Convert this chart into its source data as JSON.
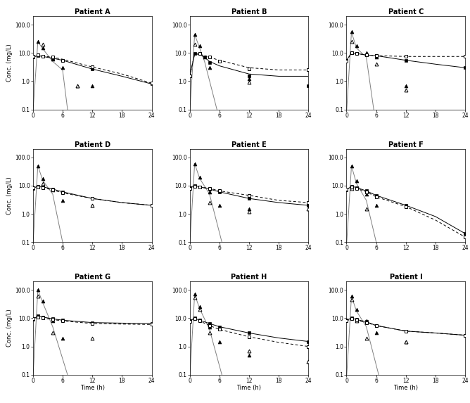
{
  "patients": [
    "Patient A",
    "Patient B",
    "Patient C",
    "Patient D",
    "Patient E",
    "Patient F",
    "Patient G",
    "Patient H",
    "Patient I"
  ],
  "xlim": [
    0,
    24
  ],
  "ylim": [
    0.1,
    200
  ],
  "yticks": [
    0.1,
    1.0,
    10.0,
    100.0
  ],
  "ytick_labels": [
    "0.1",
    "1.0",
    "10.0",
    "100.0"
  ],
  "xticks": [
    0,
    6,
    12,
    18,
    24
  ],
  "xlabel": "Time (h)",
  "ylabel": "Conc. (mg/L)",
  "A": {
    "cms_dose1_t": [
      1,
      2,
      4,
      6,
      9,
      12
    ],
    "cms_dose1_c": [
      25,
      15,
      6,
      3,
      0.7,
      0.7
    ],
    "cms_dose3_t": [
      2,
      9
    ],
    "cms_dose3_c": [
      20,
      0.7
    ],
    "col_dose1_t": [
      0,
      1,
      2,
      4,
      6,
      12,
      24
    ],
    "col_dose1_c": [
      7.0,
      8.0,
      7.5,
      6.5,
      5.5,
      2.7,
      0.8
    ],
    "col_dose3_t": [
      0,
      1,
      2,
      4,
      6,
      12,
      24
    ],
    "col_dose3_c": [
      7.5,
      8.5,
      7.5,
      7.0,
      5.5,
      3.2,
      0.85
    ],
    "line_cms1_t": [
      0.05,
      1,
      2,
      4,
      6,
      7.0
    ],
    "line_cms1_c": [
      0.1,
      25,
      14,
      5,
      2.5,
      0.1
    ],
    "line_col1_t": [
      0,
      1,
      2,
      4,
      6,
      12,
      18,
      24
    ],
    "line_col1_c": [
      7.0,
      8.0,
      7.5,
      6.5,
      5.5,
      2.7,
      1.5,
      0.8
    ],
    "line_col3_t": [
      0,
      1,
      2,
      4,
      6,
      12,
      18,
      24
    ],
    "line_col3_c": [
      7.5,
      8.5,
      7.8,
      7.0,
      6.0,
      3.2,
      1.8,
      0.85
    ]
  },
  "B": {
    "cms_dose1_t": [
      1,
      2,
      3,
      4,
      12
    ],
    "cms_dose1_c": [
      45,
      18,
      7,
      3,
      1.2
    ],
    "cms_dose3_t": [
      1,
      12
    ],
    "cms_dose3_c": [
      20,
      0.9
    ],
    "col_dose1_t": [
      0,
      1,
      2,
      3,
      4,
      12,
      24
    ],
    "col_dose1_c": [
      1.5,
      9.5,
      9.5,
      7,
      4.5,
      1.5,
      0.7
    ],
    "col_dose3_t": [
      0,
      2,
      4,
      6,
      12,
      24
    ],
    "col_dose3_c": [
      1.5,
      9.5,
      7.0,
      5.0,
      2.8,
      2.5
    ],
    "line_cms1_t": [
      0.05,
      1,
      2,
      3,
      5.5
    ],
    "line_cms1_c": [
      0.1,
      45,
      15,
      5,
      0.1
    ],
    "line_col1_t": [
      0,
      1,
      2,
      3,
      4,
      6,
      12,
      18,
      24
    ],
    "line_col1_c": [
      1.5,
      9.0,
      9.0,
      7.0,
      5.0,
      3.5,
      1.8,
      1.5,
      1.5
    ],
    "line_col3_t": [
      0,
      1,
      2,
      4,
      6,
      12,
      18,
      24
    ],
    "line_col3_c": [
      1.5,
      9.5,
      9.0,
      7.0,
      5.5,
      3.0,
      2.5,
      2.5
    ]
  },
  "C": {
    "cms_dose1_t": [
      1,
      2,
      4,
      6,
      12
    ],
    "cms_dose1_c": [
      55,
      18,
      10,
      7,
      0.7
    ],
    "cms_dose3_t": [
      1,
      6,
      12
    ],
    "cms_dose3_c": [
      25,
      4,
      0.5
    ],
    "col_dose1_t": [
      0,
      1,
      2,
      4,
      6,
      12,
      24
    ],
    "col_dose1_c": [
      5.5,
      10,
      9.5,
      8.5,
      8.0,
      5.5,
      3.0
    ],
    "col_dose3_t": [
      0,
      1,
      2,
      4,
      6,
      12,
      24
    ],
    "col_dose3_c": [
      5.0,
      10,
      9.5,
      8.5,
      8.0,
      7.5,
      7.5
    ],
    "line_cms1_t": [
      0.05,
      1,
      2,
      4,
      5.5
    ],
    "line_cms1_c": [
      0.1,
      55,
      15,
      7,
      0.1
    ],
    "line_col1_t": [
      0,
      1,
      2,
      4,
      6,
      12,
      18,
      24
    ],
    "line_col1_c": [
      5.5,
      10,
      9.5,
      8.5,
      8.0,
      5.5,
      4.0,
      3.0
    ],
    "line_col3_t": [
      0,
      1,
      2,
      4,
      6,
      12,
      18,
      24
    ],
    "line_col3_c": [
      5.0,
      10,
      9.5,
      8.5,
      8.0,
      7.5,
      7.5,
      7.5
    ]
  },
  "D": {
    "cms_dose1_t": [
      1,
      2,
      4,
      6,
      12
    ],
    "cms_dose1_c": [
      50,
      18,
      7,
      3,
      2
    ],
    "cms_dose3_t": [
      2,
      12
    ],
    "cms_dose3_c": [
      12,
      2
    ],
    "col_dose1_t": [
      0,
      1,
      2,
      4,
      6,
      12,
      24
    ],
    "col_dose1_c": [
      8.0,
      9.5,
      9.0,
      7.5,
      6.0,
      3.5,
      2.0
    ],
    "col_dose3_t": [
      0,
      1,
      2,
      4,
      6,
      12,
      24
    ],
    "col_dose3_c": [
      8.5,
      9.0,
      8.5,
      7.0,
      5.5,
      3.5,
      2.0
    ],
    "line_cms1_t": [
      0.05,
      1,
      2,
      4,
      6.0
    ],
    "line_cms1_c": [
      0.1,
      50,
      15,
      5,
      0.1
    ],
    "line_col1_t": [
      0,
      1,
      2,
      4,
      6,
      12,
      18,
      24
    ],
    "line_col1_c": [
      8.0,
      9.5,
      9.0,
      7.5,
      6.0,
      3.5,
      2.5,
      2.0
    ],
    "line_col3_t": [
      0,
      1,
      2,
      4,
      6,
      12,
      18,
      24
    ],
    "line_col3_c": [
      8.5,
      9.0,
      8.5,
      7.0,
      5.5,
      3.5,
      2.5,
      2.0
    ]
  },
  "E": {
    "cms_dose1_t": [
      1,
      2,
      4,
      6,
      12
    ],
    "cms_dose1_c": [
      60,
      20,
      6,
      2,
      1.5
    ],
    "cms_dose3_t": [
      4,
      12,
      24
    ],
    "cms_dose3_c": [
      2.5,
      1.2,
      1.5
    ],
    "col_dose1_t": [
      0,
      1,
      2,
      4,
      6,
      12,
      24
    ],
    "col_dose1_c": [
      8.5,
      10,
      9.0,
      7.5,
      6.0,
      3.5,
      2.0
    ],
    "col_dose3_t": [
      0,
      1,
      2,
      4,
      6,
      12,
      24
    ],
    "col_dose3_c": [
      8.0,
      9.5,
      9.0,
      8.0,
      6.5,
      4.5,
      2.5
    ],
    "line_cms1_t": [
      0.05,
      1,
      2,
      4,
      6.5
    ],
    "line_cms1_c": [
      0.1,
      60,
      18,
      5,
      0.1
    ],
    "line_col1_t": [
      0,
      1,
      2,
      4,
      6,
      12,
      18,
      24
    ],
    "line_col1_c": [
      8.5,
      10,
      9.0,
      7.5,
      6.0,
      3.5,
      2.5,
      2.0
    ],
    "line_col3_t": [
      0,
      1,
      2,
      4,
      6,
      12,
      18,
      24
    ],
    "line_col3_c": [
      8.0,
      9.5,
      9.0,
      8.0,
      6.5,
      4.5,
      3.0,
      2.5
    ]
  },
  "F": {
    "cms_dose1_t": [
      1,
      2,
      4,
      6
    ],
    "cms_dose1_c": [
      50,
      15,
      5,
      2
    ],
    "cms_dose3_t": [
      1,
      4
    ],
    "cms_dose3_c": [
      8,
      1.5
    ],
    "col_dose1_t": [
      0,
      1,
      2,
      4,
      6,
      12,
      24
    ],
    "col_dose1_c": [
      7.0,
      9.5,
      8.5,
      6.5,
      4.5,
      2.0,
      0.2
    ],
    "col_dose3_t": [
      0,
      1,
      2,
      4,
      6,
      12,
      24
    ],
    "col_dose3_c": [
      7.5,
      9.0,
      8.0,
      6.0,
      4.0,
      1.8,
      0.15
    ],
    "line_cms1_t": [
      0.05,
      1,
      2,
      4,
      6.0
    ],
    "line_cms1_c": [
      0.1,
      50,
      12,
      3,
      0.1
    ],
    "line_col1_t": [
      0,
      1,
      2,
      4,
      6,
      12,
      18,
      24
    ],
    "line_col1_c": [
      7.0,
      9.5,
      8.5,
      6.5,
      4.5,
      2.0,
      0.8,
      0.2
    ],
    "line_col3_t": [
      0,
      1,
      2,
      4,
      6,
      12,
      18,
      24
    ],
    "line_col3_c": [
      7.5,
      9.0,
      8.0,
      6.0,
      4.0,
      1.8,
      0.6,
      0.15
    ]
  },
  "G": {
    "cms_dose1_t": [
      1,
      2,
      4,
      6
    ],
    "cms_dose1_c": [
      100,
      40,
      8,
      2
    ],
    "cms_dose3_t": [
      1,
      4,
      12
    ],
    "cms_dose3_c": [
      60,
      3,
      2
    ],
    "col_dose1_t": [
      0,
      1,
      2,
      4,
      6,
      12,
      24
    ],
    "col_dose1_c": [
      9.0,
      12,
      11,
      9.5,
      8.5,
      7.0,
      6.5
    ],
    "col_dose3_t": [
      0,
      1,
      2,
      4,
      6,
      12,
      24
    ],
    "col_dose3_c": [
      9.5,
      11,
      10,
      9.0,
      8.0,
      6.5,
      6.0
    ],
    "line_cms1_t": [
      0.05,
      1,
      2,
      4,
      7.0
    ],
    "line_cms1_c": [
      0.1,
      100,
      35,
      5,
      0.1
    ],
    "line_col1_t": [
      0,
      1,
      2,
      4,
      6,
      12,
      18,
      24
    ],
    "line_col1_c": [
      9.0,
      12,
      11,
      9.5,
      8.5,
      7.0,
      6.7,
      6.5
    ],
    "line_col3_t": [
      0,
      1,
      2,
      4,
      6,
      12,
      18,
      24
    ],
    "line_col3_c": [
      9.5,
      11,
      10,
      9.0,
      8.0,
      6.5,
      6.2,
      6.0
    ]
  },
  "H": {
    "cms_dose1_t": [
      1,
      2,
      4,
      6,
      12,
      24
    ],
    "cms_dose1_c": [
      70,
      25,
      5,
      1.5,
      0.5,
      0.3
    ],
    "cms_dose3_t": [
      1,
      2,
      4,
      12,
      24
    ],
    "cms_dose3_c": [
      55,
      20,
      3,
      0.7,
      0.3
    ],
    "col_dose1_t": [
      0,
      1,
      2,
      4,
      6,
      12,
      24
    ],
    "col_dose1_c": [
      8.0,
      10,
      8.5,
      6.5,
      5.0,
      3.0,
      1.5
    ],
    "col_dose3_t": [
      0,
      1,
      2,
      4,
      6,
      12,
      24
    ],
    "col_dose3_c": [
      7.5,
      9.5,
      8.0,
      5.5,
      4.0,
      2.2,
      1.0
    ],
    "line_cms1_t": [
      0.05,
      1,
      2,
      4,
      6.5
    ],
    "line_cms1_c": [
      0.1,
      70,
      22,
      4,
      0.1
    ],
    "line_col1_t": [
      0,
      1,
      2,
      4,
      6,
      12,
      18,
      24
    ],
    "line_col1_c": [
      8.0,
      10,
      8.5,
      6.5,
      5.0,
      3.0,
      2.0,
      1.5
    ],
    "line_col3_t": [
      0,
      1,
      2,
      4,
      6,
      12,
      18,
      24
    ],
    "line_col3_c": [
      7.5,
      9.5,
      8.0,
      5.5,
      4.0,
      2.2,
      1.4,
      1.0
    ]
  },
  "I": {
    "cms_dose1_t": [
      1,
      2,
      4,
      6,
      12
    ],
    "cms_dose1_c": [
      60,
      20,
      8,
      3,
      1.5
    ],
    "cms_dose3_t": [
      1,
      2,
      4,
      12
    ],
    "cms_dose3_c": [
      45,
      8,
      2,
      1.5
    ],
    "col_dose1_t": [
      0,
      1,
      2,
      4,
      6,
      12,
      24
    ],
    "col_dose1_c": [
      8.5,
      10,
      9.0,
      7.5,
      5.5,
      3.5,
      2.5
    ],
    "col_dose3_t": [
      0,
      1,
      2,
      4,
      6,
      12,
      24
    ],
    "col_dose3_c": [
      8.0,
      9.5,
      8.5,
      7.0,
      5.5,
      3.5,
      2.5
    ],
    "line_cms1_t": [
      0.05,
      1,
      2,
      4,
      6.5
    ],
    "line_cms1_c": [
      0.1,
      60,
      18,
      5,
      0.1
    ],
    "line_col1_t": [
      0,
      1,
      2,
      4,
      6,
      12,
      18,
      24
    ],
    "line_col1_c": [
      8.5,
      10,
      9.0,
      7.5,
      5.5,
      3.5,
      3.0,
      2.5
    ],
    "line_col3_t": [
      0,
      1,
      2,
      4,
      6,
      12,
      18,
      24
    ],
    "line_col3_c": [
      8.0,
      9.5,
      8.5,
      7.0,
      5.5,
      3.5,
      3.0,
      2.5
    ]
  }
}
